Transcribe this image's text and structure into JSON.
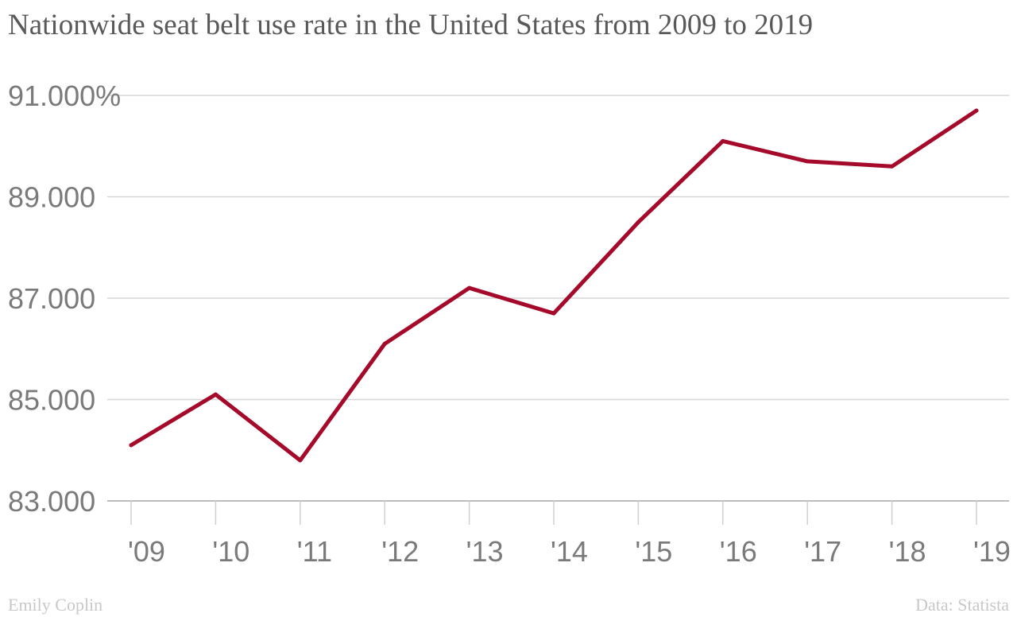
{
  "chart_data": {
    "type": "line",
    "title": "Nationwide seat belt use rate in the United States from 2009 to 2019",
    "categories": [
      "'09",
      "'10",
      "'11",
      "'12",
      "'13",
      "'14",
      "'15",
      "'16",
      "'17",
      "'18",
      "'19"
    ],
    "series": [
      {
        "values": [
          84.1,
          85.1,
          83.8,
          86.1,
          87.2,
          86.7,
          88.5,
          90.1,
          89.7,
          89.6,
          90.7
        ],
        "color": "#a50a2a"
      }
    ],
    "yticks": [
      {
        "value": 91,
        "label": "91.000%"
      },
      {
        "value": 89,
        "label": "89.000"
      },
      {
        "value": 87,
        "label": "87.000"
      },
      {
        "value": 85,
        "label": "85.000"
      },
      {
        "value": 83,
        "label": "83.000"
      }
    ],
    "ylim": [
      83,
      91
    ],
    "grid": true,
    "xlabel": "",
    "ylabel": ""
  },
  "footer": {
    "credit": "Emily Coplin",
    "source": "Data: Statista"
  }
}
